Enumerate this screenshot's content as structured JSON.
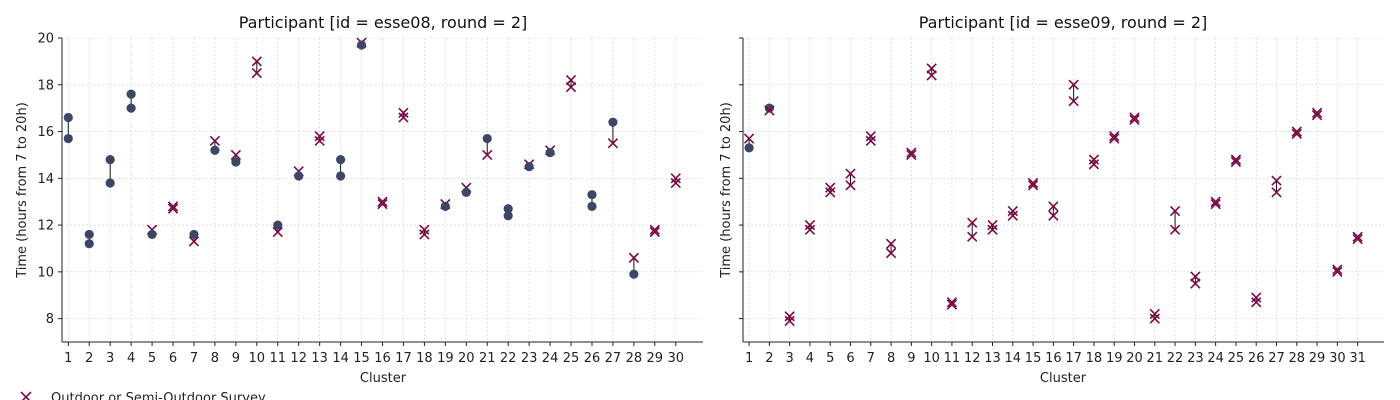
{
  "colors": {
    "marker_x": "#7a0b45",
    "marker_o": "#3d4666",
    "connector": "#111111",
    "grid": "#cfcfcf",
    "axis": "#222222"
  },
  "legend": {
    "x_label": "Outdoor or Semi-Outdoor Survey"
  },
  "chart_data": [
    {
      "type": "scatter",
      "title": "Participant [id = esse08, round = 2]",
      "xlabel": "Cluster",
      "ylabel": "Time (hours from 7 to 20h)",
      "ylim": [
        7,
        20
      ],
      "yticks": [
        8,
        10,
        12,
        14,
        16,
        18,
        20
      ],
      "xticks": [
        "1",
        "2",
        "3",
        "4",
        "5",
        "6",
        "7",
        "8",
        "9",
        "10",
        "11",
        "12",
        "13",
        "14",
        "15",
        "16",
        "17",
        "18",
        "19",
        "20",
        "21",
        "22",
        "23",
        "24",
        "25",
        "26",
        "27",
        "28",
        "29",
        "30"
      ],
      "grid": true,
      "points": [
        {
          "cluster": 1,
          "y": 16.6,
          "m": "o"
        },
        {
          "cluster": 1,
          "y": 15.7,
          "m": "o"
        },
        {
          "cluster": 2,
          "y": 11.6,
          "m": "o"
        },
        {
          "cluster": 2,
          "y": 11.2,
          "m": "o"
        },
        {
          "cluster": 3,
          "y": 14.8,
          "m": "o"
        },
        {
          "cluster": 3,
          "y": 13.8,
          "m": "o"
        },
        {
          "cluster": 4,
          "y": 17.6,
          "m": "o"
        },
        {
          "cluster": 4,
          "y": 17.0,
          "m": "o"
        },
        {
          "cluster": 5,
          "y": 11.8,
          "m": "x"
        },
        {
          "cluster": 5,
          "y": 11.6,
          "m": "o"
        },
        {
          "cluster": 6,
          "y": 12.8,
          "m": "x"
        },
        {
          "cluster": 6,
          "y": 12.7,
          "m": "x"
        },
        {
          "cluster": 7,
          "y": 11.6,
          "m": "o"
        },
        {
          "cluster": 7,
          "y": 11.3,
          "m": "x"
        },
        {
          "cluster": 8,
          "y": 15.6,
          "m": "x"
        },
        {
          "cluster": 8,
          "y": 15.2,
          "m": "o"
        },
        {
          "cluster": 9,
          "y": 15.0,
          "m": "x"
        },
        {
          "cluster": 9,
          "y": 14.7,
          "m": "o"
        },
        {
          "cluster": 10,
          "y": 19.0,
          "m": "x"
        },
        {
          "cluster": 10,
          "y": 18.5,
          "m": "x"
        },
        {
          "cluster": 11,
          "y": 12.0,
          "m": "o"
        },
        {
          "cluster": 11,
          "y": 11.7,
          "m": "x"
        },
        {
          "cluster": 12,
          "y": 14.3,
          "m": "x"
        },
        {
          "cluster": 12,
          "y": 14.1,
          "m": "o"
        },
        {
          "cluster": 13,
          "y": 15.8,
          "m": "x"
        },
        {
          "cluster": 13,
          "y": 15.6,
          "m": "x"
        },
        {
          "cluster": 14,
          "y": 14.8,
          "m": "o"
        },
        {
          "cluster": 14,
          "y": 14.1,
          "m": "o"
        },
        {
          "cluster": 15,
          "y": 19.8,
          "m": "x"
        },
        {
          "cluster": 15,
          "y": 19.7,
          "m": "o"
        },
        {
          "cluster": 16,
          "y": 13.0,
          "m": "x"
        },
        {
          "cluster": 16,
          "y": 12.9,
          "m": "x"
        },
        {
          "cluster": 17,
          "y": 16.8,
          "m": "x"
        },
        {
          "cluster": 17,
          "y": 16.6,
          "m": "x"
        },
        {
          "cluster": 18,
          "y": 11.8,
          "m": "x"
        },
        {
          "cluster": 18,
          "y": 11.6,
          "m": "x"
        },
        {
          "cluster": 19,
          "y": 12.9,
          "m": "x"
        },
        {
          "cluster": 19,
          "y": 12.8,
          "m": "o"
        },
        {
          "cluster": 20,
          "y": 13.6,
          "m": "x"
        },
        {
          "cluster": 20,
          "y": 13.4,
          "m": "o"
        },
        {
          "cluster": 21,
          "y": 15.7,
          "m": "o"
        },
        {
          "cluster": 21,
          "y": 15.0,
          "m": "x"
        },
        {
          "cluster": 22,
          "y": 12.7,
          "m": "o"
        },
        {
          "cluster": 22,
          "y": 12.4,
          "m": "o"
        },
        {
          "cluster": 23,
          "y": 14.6,
          "m": "x"
        },
        {
          "cluster": 23,
          "y": 14.5,
          "m": "o"
        },
        {
          "cluster": 24,
          "y": 15.2,
          "m": "x"
        },
        {
          "cluster": 24,
          "y": 15.1,
          "m": "o"
        },
        {
          "cluster": 25,
          "y": 18.2,
          "m": "x"
        },
        {
          "cluster": 25,
          "y": 17.9,
          "m": "x"
        },
        {
          "cluster": 26,
          "y": 13.3,
          "m": "o"
        },
        {
          "cluster": 26,
          "y": 12.8,
          "m": "o"
        },
        {
          "cluster": 27,
          "y": 16.4,
          "m": "o"
        },
        {
          "cluster": 27,
          "y": 15.5,
          "m": "x"
        },
        {
          "cluster": 28,
          "y": 10.6,
          "m": "x"
        },
        {
          "cluster": 28,
          "y": 9.9,
          "m": "o"
        },
        {
          "cluster": 29,
          "y": 11.8,
          "m": "x"
        },
        {
          "cluster": 29,
          "y": 11.7,
          "m": "x"
        },
        {
          "cluster": 30,
          "y": 14.0,
          "m": "x"
        },
        {
          "cluster": 30,
          "y": 13.8,
          "m": "x"
        }
      ]
    },
    {
      "type": "scatter",
      "title": "Participant [id = esse09, round = 2]",
      "xlabel": "Cluster",
      "ylabel": "Time (hours from 7 to 20h)",
      "ylim": [
        7,
        20
      ],
      "yticks": [
        8,
        10,
        12,
        14,
        16,
        18,
        20
      ],
      "xticks": [
        "1",
        "2",
        "3",
        "4",
        "5",
        "6",
        "7",
        "8",
        "9",
        "10",
        "11",
        "12",
        "13",
        "14",
        "15",
        "16",
        "17",
        "18",
        "19",
        "20",
        "21",
        "22",
        "23",
        "24",
        "25",
        "26",
        "27",
        "28",
        "29",
        "30",
        "31"
      ],
      "grid": true,
      "points": [
        {
          "cluster": 1,
          "y": 15.7,
          "m": "x"
        },
        {
          "cluster": 1,
          "y": 15.3,
          "m": "o"
        },
        {
          "cluster": 2,
          "y": 17.0,
          "m": "o"
        },
        {
          "cluster": 2,
          "y": 16.9,
          "m": "x"
        },
        {
          "cluster": 3,
          "y": 8.1,
          "m": "x"
        },
        {
          "cluster": 3,
          "y": 7.9,
          "m": "x"
        },
        {
          "cluster": 4,
          "y": 12.0,
          "m": "x"
        },
        {
          "cluster": 4,
          "y": 11.8,
          "m": "x"
        },
        {
          "cluster": 5,
          "y": 13.6,
          "m": "x"
        },
        {
          "cluster": 5,
          "y": 13.4,
          "m": "x"
        },
        {
          "cluster": 6,
          "y": 14.2,
          "m": "x"
        },
        {
          "cluster": 6,
          "y": 13.7,
          "m": "x"
        },
        {
          "cluster": 7,
          "y": 15.8,
          "m": "x"
        },
        {
          "cluster": 7,
          "y": 15.6,
          "m": "x"
        },
        {
          "cluster": 8,
          "y": 11.2,
          "m": "x"
        },
        {
          "cluster": 8,
          "y": 10.8,
          "m": "x"
        },
        {
          "cluster": 9,
          "y": 15.1,
          "m": "x"
        },
        {
          "cluster": 9,
          "y": 15.0,
          "m": "x"
        },
        {
          "cluster": 10,
          "y": 18.7,
          "m": "x"
        },
        {
          "cluster": 10,
          "y": 18.4,
          "m": "x"
        },
        {
          "cluster": 11,
          "y": 8.7,
          "m": "x"
        },
        {
          "cluster": 11,
          "y": 8.6,
          "m": "x"
        },
        {
          "cluster": 12,
          "y": 12.1,
          "m": "x"
        },
        {
          "cluster": 12,
          "y": 11.5,
          "m": "x"
        },
        {
          "cluster": 13,
          "y": 12.0,
          "m": "x"
        },
        {
          "cluster": 13,
          "y": 11.8,
          "m": "x"
        },
        {
          "cluster": 14,
          "y": 12.6,
          "m": "x"
        },
        {
          "cluster": 14,
          "y": 12.4,
          "m": "x"
        },
        {
          "cluster": 15,
          "y": 13.8,
          "m": "x"
        },
        {
          "cluster": 15,
          "y": 13.7,
          "m": "x"
        },
        {
          "cluster": 16,
          "y": 12.8,
          "m": "x"
        },
        {
          "cluster": 16,
          "y": 12.4,
          "m": "x"
        },
        {
          "cluster": 17,
          "y": 18.0,
          "m": "x"
        },
        {
          "cluster": 17,
          "y": 17.3,
          "m": "x"
        },
        {
          "cluster": 18,
          "y": 14.8,
          "m": "x"
        },
        {
          "cluster": 18,
          "y": 14.6,
          "m": "x"
        },
        {
          "cluster": 19,
          "y": 15.8,
          "m": "x"
        },
        {
          "cluster": 19,
          "y": 15.7,
          "m": "x"
        },
        {
          "cluster": 20,
          "y": 16.6,
          "m": "x"
        },
        {
          "cluster": 20,
          "y": 16.5,
          "m": "x"
        },
        {
          "cluster": 21,
          "y": 8.2,
          "m": "x"
        },
        {
          "cluster": 21,
          "y": 8.0,
          "m": "x"
        },
        {
          "cluster": 22,
          "y": 12.6,
          "m": "x"
        },
        {
          "cluster": 22,
          "y": 11.8,
          "m": "x"
        },
        {
          "cluster": 23,
          "y": 9.8,
          "m": "x"
        },
        {
          "cluster": 23,
          "y": 9.5,
          "m": "x"
        },
        {
          "cluster": 24,
          "y": 13.0,
          "m": "x"
        },
        {
          "cluster": 24,
          "y": 12.9,
          "m": "x"
        },
        {
          "cluster": 25,
          "y": 14.8,
          "m": "x"
        },
        {
          "cluster": 25,
          "y": 14.7,
          "m": "x"
        },
        {
          "cluster": 26,
          "y": 8.9,
          "m": "x"
        },
        {
          "cluster": 26,
          "y": 8.7,
          "m": "x"
        },
        {
          "cluster": 27,
          "y": 13.9,
          "m": "x"
        },
        {
          "cluster": 27,
          "y": 13.4,
          "m": "x"
        },
        {
          "cluster": 28,
          "y": 16.0,
          "m": "x"
        },
        {
          "cluster": 28,
          "y": 15.9,
          "m": "x"
        },
        {
          "cluster": 29,
          "y": 16.8,
          "m": "x"
        },
        {
          "cluster": 29,
          "y": 16.7,
          "m": "x"
        },
        {
          "cluster": 30,
          "y": 10.1,
          "m": "x"
        },
        {
          "cluster": 30,
          "y": 10.0,
          "m": "x"
        },
        {
          "cluster": 31,
          "y": 11.5,
          "m": "x"
        },
        {
          "cluster": 31,
          "y": 11.4,
          "m": "x"
        }
      ]
    }
  ]
}
